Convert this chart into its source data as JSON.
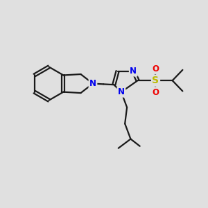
{
  "background_color": "#e0e0e0",
  "bond_color": "#1a1a1a",
  "N_color": "#0000ee",
  "S_color": "#bbbb00",
  "O_color": "#ee0000",
  "font_size_atom": 8.5,
  "line_width": 1.6,
  "figsize": [
    3.0,
    3.0
  ],
  "dpi": 100,
  "xlim": [
    0,
    10
  ],
  "ylim": [
    0,
    10
  ]
}
